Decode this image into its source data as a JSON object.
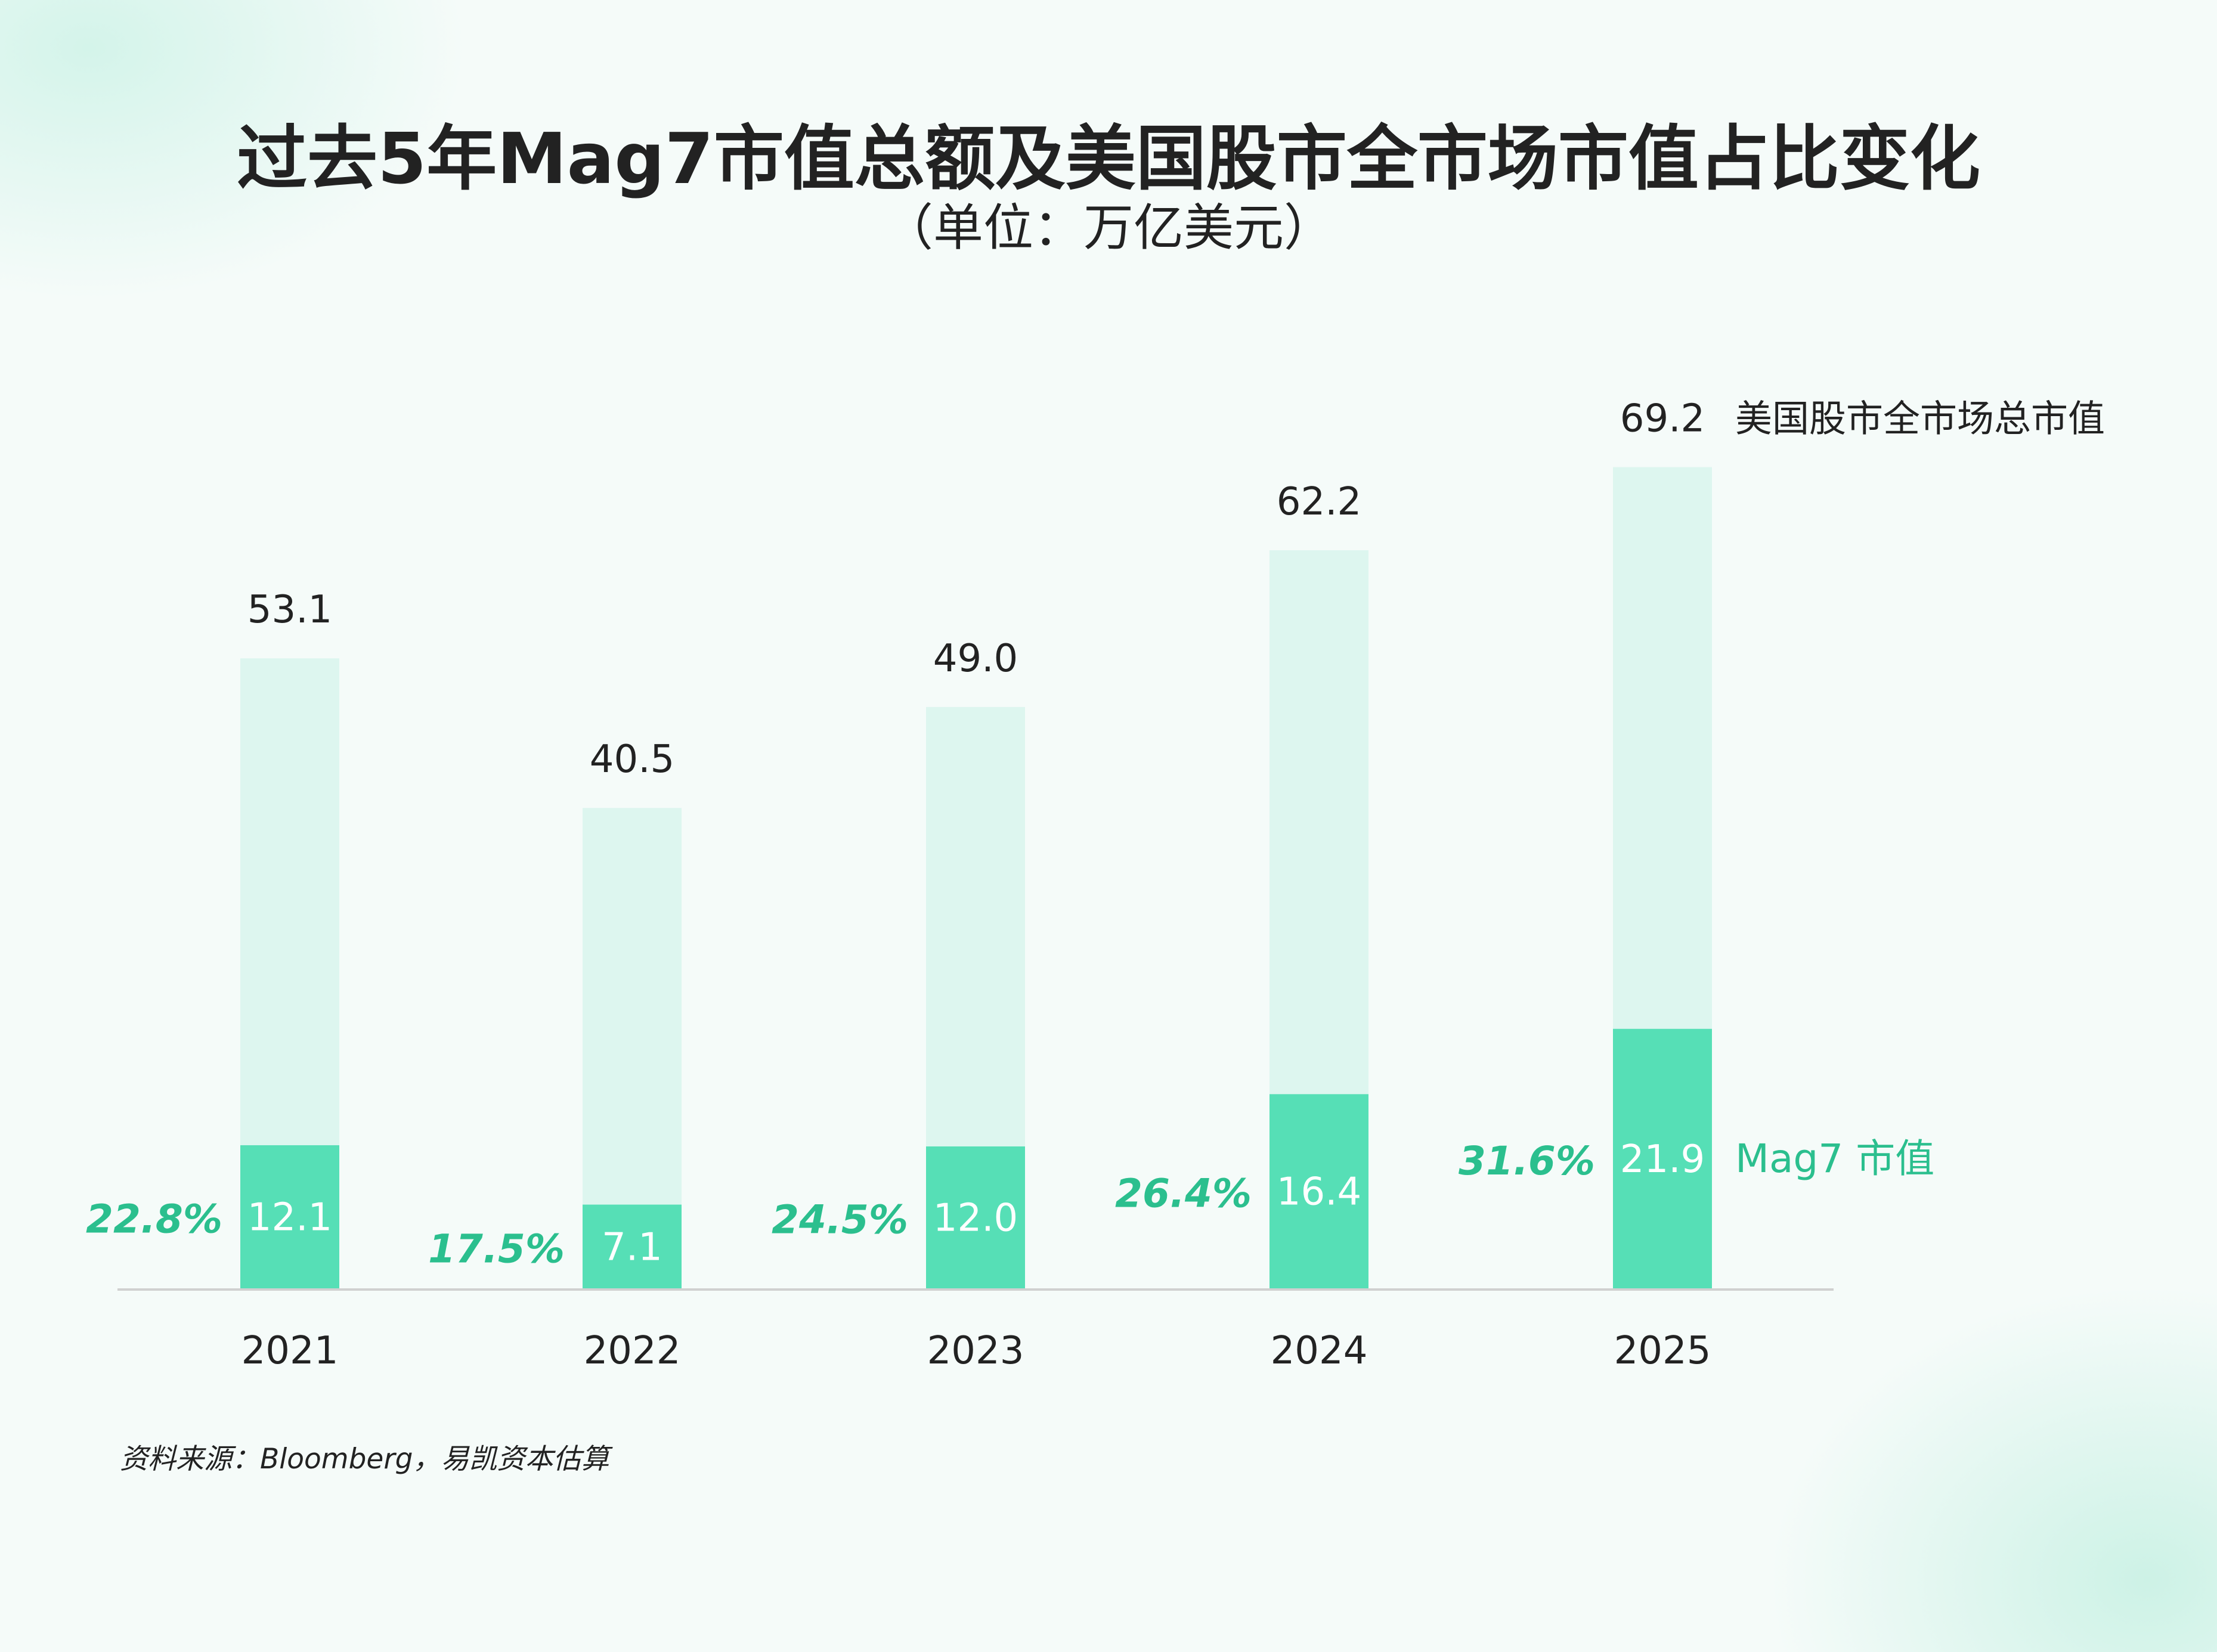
{
  "chart_data": {
    "type": "bar",
    "title": "过去5年Mag7市值总额及美国股市全市场市值占比变化",
    "subtitle": "（单位：万亿美元）",
    "categories": [
      "2021",
      "2022",
      "2023",
      "2024",
      "2025"
    ],
    "series": [
      {
        "name": "美国股市全市场总市值",
        "values": [
          53.1,
          40.5,
          49.0,
          62.2,
          69.2
        ],
        "labels": [
          "53.1",
          "40.5",
          "49.0",
          "62.2",
          "69.2"
        ],
        "color": "#ddf6ef"
      },
      {
        "name": "Mag7 市值",
        "values": [
          12.1,
          7.1,
          12.0,
          16.4,
          21.9
        ],
        "labels": [
          "12.1",
          "7.1",
          "12.0",
          "16.4",
          "21.9"
        ],
        "color": "#56dfb6"
      }
    ],
    "share_labels": [
      "22.8%",
      "17.5%",
      "24.5%",
      "26.4%",
      "31.6%"
    ],
    "share_color": "#2bbf8e",
    "ylim": [
      0,
      70
    ],
    "grid": false,
    "legend": "right, inline at last bar",
    "source": "资料来源：Bloomberg，易凯资本估算"
  }
}
